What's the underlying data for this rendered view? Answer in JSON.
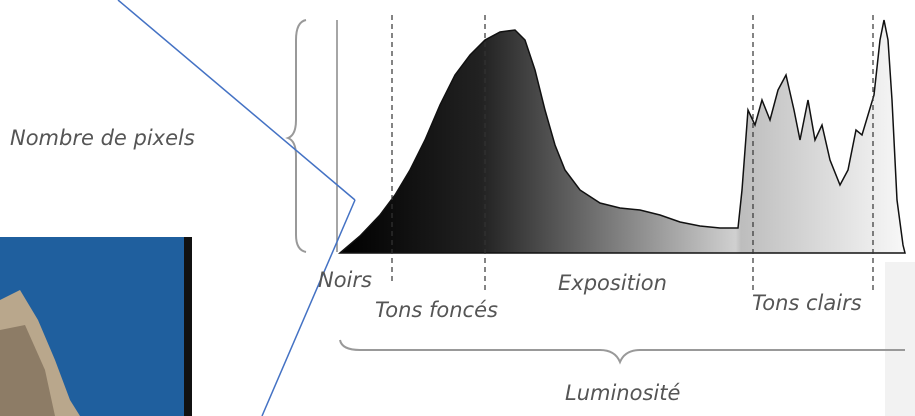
{
  "labels": {
    "y_axis": "Nombre de pixels",
    "x_axis": "Luminosité",
    "zones": [
      "Noirs",
      "Tons foncés",
      "Exposition",
      "Tons clairs"
    ]
  }
}
